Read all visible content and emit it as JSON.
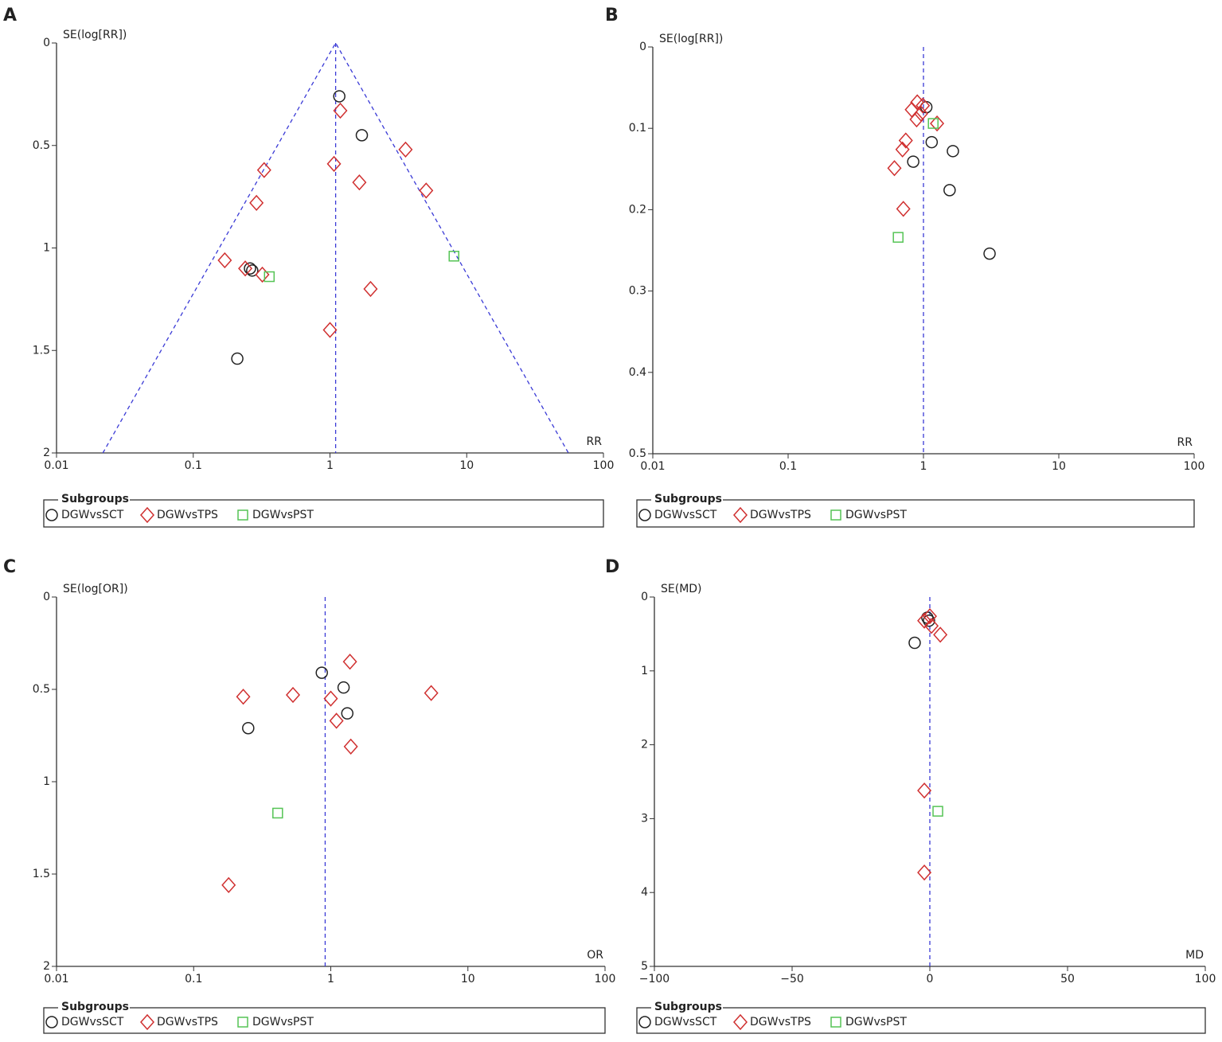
{
  "chart_data": [
    {
      "type": "scatter",
      "panel": "A",
      "y_title": "SE(log[RR])",
      "x_title": "RR",
      "xscale": "log",
      "yreversed": true,
      "xlim": [
        0.01,
        100
      ],
      "xticks": [
        0.01,
        0.1,
        1,
        10,
        100
      ],
      "ylim": [
        0,
        2
      ],
      "yticks": [
        0,
        0.5,
        1,
        1.5,
        2
      ],
      "pooled_estimate": 1.1,
      "funnel": true,
      "reference_color": "#3a3ad6",
      "legend_title": "Subgroups",
      "series": [
        {
          "name": "DGWvsSCT",
          "color": "#222222",
          "marker": "circle",
          "x": [
            1.17,
            1.71,
            0.26,
            0.27,
            0.21
          ],
          "values": [
            0.26,
            0.45,
            1.1,
            1.11,
            1.54
          ]
        },
        {
          "name": "DGWvsTPS",
          "color": "#d03030",
          "marker": "diamond",
          "x": [
            1.19,
            3.57,
            0.33,
            1.07,
            1.64,
            5.05,
            0.29,
            0.17,
            0.24,
            0.32,
            1.98,
            1.0
          ],
          "values": [
            0.33,
            0.52,
            0.62,
            0.59,
            0.68,
            0.72,
            0.78,
            1.06,
            1.1,
            1.13,
            1.2,
            1.4
          ]
        },
        {
          "name": "DGWvsPST",
          "color": "#55c455",
          "marker": "square",
          "x": [
            8.07,
            0.36
          ],
          "values": [
            1.04,
            1.14
          ]
        }
      ]
    },
    {
      "type": "scatter",
      "panel": "B",
      "y_title": "SE(log[RR])",
      "x_title": "RR",
      "xscale": "log",
      "yreversed": true,
      "xlim": [
        0.01,
        100
      ],
      "xticks": [
        0.01,
        0.1,
        1,
        10,
        100
      ],
      "ylim": [
        0,
        0.5
      ],
      "yticks": [
        0,
        0.1,
        0.2,
        0.3,
        0.4,
        0.5
      ],
      "pooled_estimate": 1.0,
      "funnel": false,
      "reference_color": "#3a3ad6",
      "legend_title": "Subgroups",
      "series": [
        {
          "name": "DGWvsSCT",
          "color": "#222222",
          "marker": "circle",
          "x": [
            1.05,
            1.15,
            1.65,
            0.84,
            1.56,
            3.08
          ],
          "values": [
            0.074,
            0.117,
            0.128,
            0.141,
            0.176,
            0.254
          ]
        },
        {
          "name": "DGWvsTPS",
          "color": "#d03030",
          "marker": "diamond",
          "x": [
            0.9,
            0.99,
            0.82,
            0.96,
            0.89,
            1.26,
            0.74,
            0.7,
            0.61,
            0.71
          ],
          "values": [
            0.068,
            0.072,
            0.077,
            0.082,
            0.089,
            0.094,
            0.115,
            0.126,
            0.149,
            0.199
          ]
        },
        {
          "name": "DGWvsPST",
          "color": "#55c455",
          "marker": "square",
          "x": [
            1.18,
            0.65
          ],
          "values": [
            0.094,
            0.234
          ]
        }
      ]
    },
    {
      "type": "scatter",
      "panel": "C",
      "y_title": "SE(log[OR])",
      "x_title": "OR",
      "xscale": "log",
      "yreversed": true,
      "xlim": [
        0.01,
        100
      ],
      "xticks": [
        0.01,
        0.1,
        1,
        10,
        100
      ],
      "ylim": [
        0,
        2
      ],
      "yticks": [
        0,
        0.5,
        1,
        1.5,
        2
      ],
      "pooled_estimate": 0.91,
      "funnel": false,
      "reference_color": "#3a3ad6",
      "legend_title": "Subgroups",
      "series": [
        {
          "name": "DGWvsSCT",
          "color": "#222222",
          "marker": "circle",
          "x": [
            0.86,
            1.24,
            1.32,
            0.25
          ],
          "values": [
            0.41,
            0.49,
            0.63,
            0.71
          ]
        },
        {
          "name": "DGWvsTPS",
          "color": "#d03030",
          "marker": "diamond",
          "x": [
            1.38,
            0.23,
            0.53,
            1.0,
            5.4,
            1.1,
            1.4,
            0.18
          ],
          "values": [
            0.35,
            0.54,
            0.53,
            0.55,
            0.52,
            0.67,
            0.81,
            1.56
          ]
        },
        {
          "name": "DGWvsPST",
          "color": "#55c455",
          "marker": "square",
          "x": [
            0.41
          ],
          "values": [
            1.17
          ]
        }
      ]
    },
    {
      "type": "scatter",
      "panel": "D",
      "y_title": "SE(MD)",
      "x_title": "MD",
      "xscale": "linear",
      "yreversed": true,
      "xlim": [
        -100,
        100
      ],
      "xticks": [
        {
          "value": -100,
          "label": "−100"
        },
        {
          "value": -50,
          "label": "−50"
        },
        0,
        50,
        100
      ],
      "ylim": [
        0,
        5
      ],
      "yticks": [
        0,
        1,
        2,
        3,
        4,
        5
      ],
      "pooled_estimate": 0,
      "funnel": false,
      "reference_color": "#3a3ad6",
      "legend_title": "Subgroups",
      "series": [
        {
          "name": "DGWvsSCT",
          "color": "#222222",
          "marker": "circle",
          "x": [
            -0.9,
            -0.3,
            -5.5
          ],
          "values": [
            0.28,
            0.32,
            0.62
          ]
        },
        {
          "name": "DGWvsTPS",
          "color": "#d03030",
          "marker": "diamond",
          "x": [
            0,
            -2,
            0.6,
            3.8,
            -2,
            -2
          ],
          "values": [
            0.26,
            0.32,
            0.39,
            0.51,
            2.62,
            3.73
          ]
        },
        {
          "name": "DGWvsPST",
          "color": "#55c455",
          "marker": "square",
          "x": [
            2.9
          ],
          "values": [
            2.9
          ]
        }
      ]
    }
  ]
}
